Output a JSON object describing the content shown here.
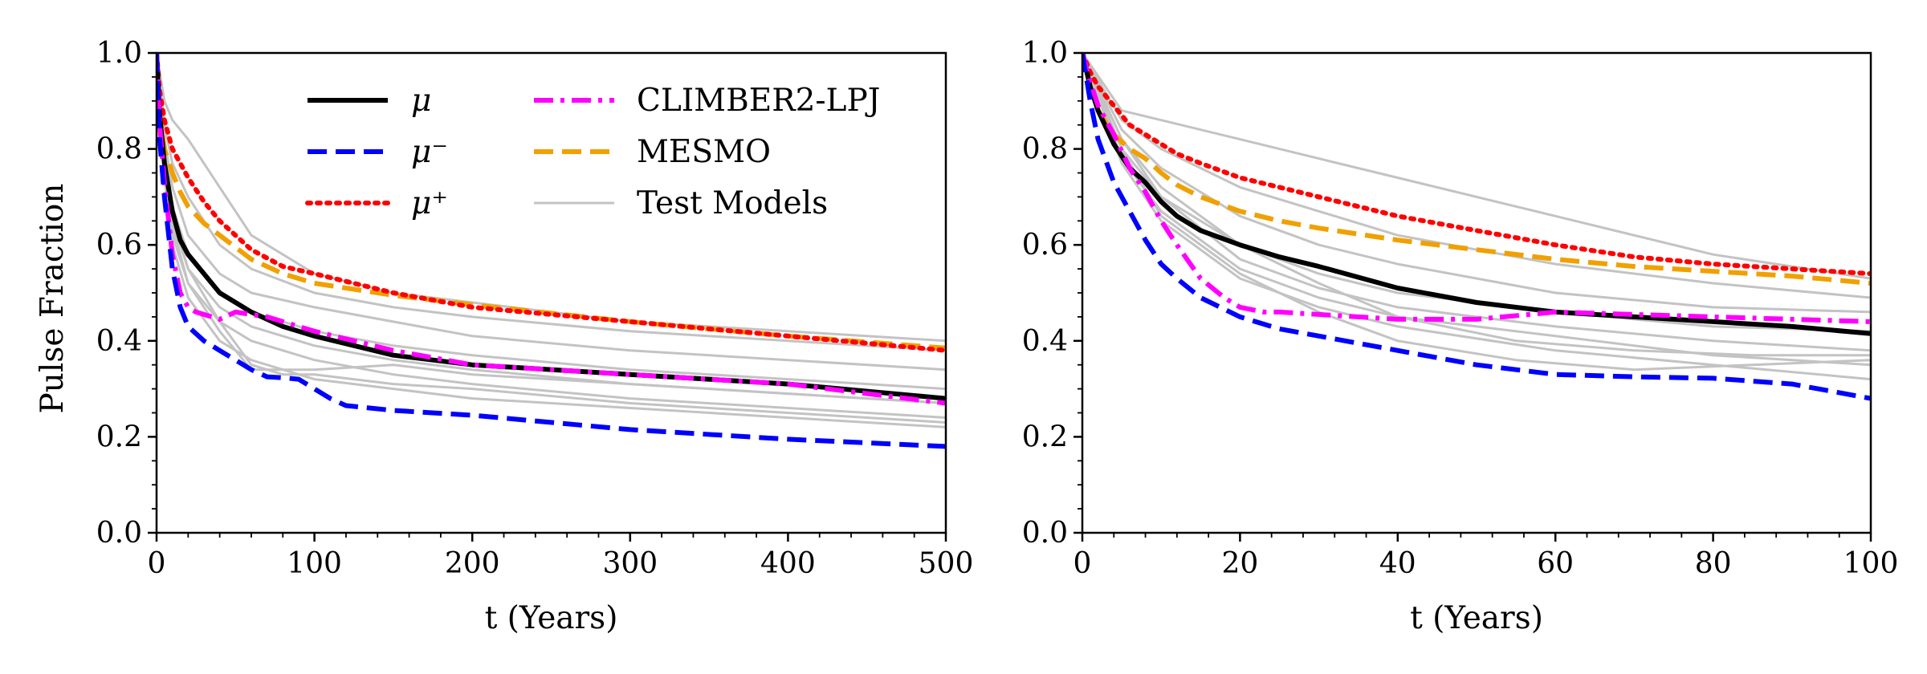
{
  "figure": {
    "ylabel": "Pulse Fraction",
    "legend": {
      "placement": "upper-center",
      "entries": [
        {
          "key": "mu",
          "label": "μ"
        },
        {
          "key": "mu_minus",
          "label": "μ⁻"
        },
        {
          "key": "mu_plus",
          "label": "μ⁺"
        },
        {
          "key": "climber",
          "label": "CLIMBER2-LPJ"
        },
        {
          "key": "mesmo",
          "label": "MESMO"
        },
        {
          "key": "test",
          "label": "Test Models"
        }
      ]
    }
  },
  "series_styles": {
    "mu": {
      "color": "#000000",
      "dash": "",
      "width": 6
    },
    "mu_minus": {
      "color": "#0000ff",
      "dash": "24 11",
      "width": 6
    },
    "mu_plus": {
      "color": "#ff0000",
      "dash": "4 8",
      "width": 6
    },
    "climber": {
      "color": "#ff00ff",
      "dash": "24 9 5 9",
      "width": 6
    },
    "mesmo": {
      "color": "#f0a000",
      "dash": "24 11",
      "width": 6
    },
    "test": {
      "color": "#c3c3c3",
      "dash": "",
      "width": 3
    }
  },
  "chart_data": [
    {
      "type": "line",
      "xlabel": "t (Years)",
      "ylabel": "Pulse Fraction",
      "xlim": [
        0,
        500
      ],
      "ylim": [
        0,
        1
      ],
      "xticks": [
        0,
        100,
        200,
        300,
        400,
        500
      ],
      "yticks": [
        0.0,
        0.2,
        0.4,
        0.6,
        0.8,
        1.0
      ],
      "xtick_labels": [
        "0",
        "100",
        "200",
        "300",
        "400",
        "500"
      ],
      "ytick_labels": [
        "0.0",
        "0.2",
        "0.4",
        "0.6",
        "0.8",
        "1.0"
      ],
      "grid": false,
      "series": [
        {
          "key": "mu",
          "name": "μ",
          "x": [
            0,
            2,
            5,
            10,
            15,
            20,
            30,
            40,
            60,
            80,
            100,
            150,
            200,
            300,
            400,
            500
          ],
          "y": [
            1.0,
            0.87,
            0.77,
            0.67,
            0.61,
            0.58,
            0.54,
            0.5,
            0.46,
            0.43,
            0.41,
            0.37,
            0.35,
            0.33,
            0.31,
            0.28
          ]
        },
        {
          "key": "mu_minus",
          "name": "μ⁻",
          "x": [
            0,
            2,
            5,
            10,
            15,
            20,
            30,
            40,
            50,
            60,
            70,
            80,
            90,
            100,
            110,
            120,
            150,
            200,
            300,
            400,
            500
          ],
          "y": [
            1.0,
            0.82,
            0.7,
            0.55,
            0.47,
            0.43,
            0.4,
            0.38,
            0.36,
            0.34,
            0.325,
            0.323,
            0.32,
            0.3,
            0.28,
            0.265,
            0.255,
            0.245,
            0.215,
            0.195,
            0.18
          ]
        },
        {
          "key": "mu_plus",
          "name": "μ⁺",
          "x": [
            0,
            2,
            5,
            10,
            15,
            20,
            30,
            40,
            60,
            80,
            100,
            150,
            200,
            300,
            400,
            500
          ],
          "y": [
            1.0,
            0.92,
            0.86,
            0.8,
            0.77,
            0.74,
            0.69,
            0.65,
            0.59,
            0.555,
            0.54,
            0.5,
            0.47,
            0.44,
            0.41,
            0.38
          ]
        },
        {
          "key": "climber",
          "name": "CLIMBER2-LPJ",
          "x": [
            0,
            2,
            5,
            10,
            15,
            20,
            25,
            30,
            40,
            50,
            60,
            70,
            80,
            100,
            150,
            200,
            300,
            400,
            500
          ],
          "y": [
            1.0,
            0.85,
            0.73,
            0.58,
            0.5,
            0.47,
            0.46,
            0.455,
            0.445,
            0.46,
            0.455,
            0.45,
            0.44,
            0.42,
            0.38,
            0.35,
            0.33,
            0.31,
            0.27
          ]
        },
        {
          "key": "mesmo",
          "name": "MESMO",
          "x": [
            0,
            2,
            5,
            10,
            15,
            20,
            30,
            40,
            60,
            80,
            100,
            150,
            200,
            300,
            400,
            500
          ],
          "y": [
            1.0,
            0.88,
            0.8,
            0.75,
            0.71,
            0.68,
            0.645,
            0.62,
            0.57,
            0.54,
            0.52,
            0.495,
            0.475,
            0.44,
            0.41,
            0.385
          ]
        },
        {
          "key": "test",
          "name": "Test Models",
          "x": [
            0,
            5,
            10,
            20,
            40,
            60,
            100,
            150,
            200,
            300,
            400,
            500
          ],
          "y": [
            1.0,
            0.9,
            0.86,
            0.82,
            0.72,
            0.62,
            0.54,
            0.5,
            0.48,
            0.44,
            0.42,
            0.4
          ]
        },
        {
          "key": "test",
          "name": "Test Models",
          "x": [
            0,
            5,
            10,
            20,
            40,
            60,
            100,
            150,
            200,
            300,
            400,
            500
          ],
          "y": [
            1.0,
            0.85,
            0.77,
            0.7,
            0.6,
            0.55,
            0.5,
            0.47,
            0.45,
            0.42,
            0.4,
            0.38
          ]
        },
        {
          "key": "test",
          "name": "Test Models",
          "x": [
            0,
            5,
            10,
            20,
            40,
            60,
            100,
            150,
            200,
            300,
            400,
            500
          ],
          "y": [
            1.0,
            0.82,
            0.72,
            0.62,
            0.54,
            0.5,
            0.47,
            0.44,
            0.41,
            0.38,
            0.36,
            0.34
          ]
        },
        {
          "key": "test",
          "name": "Test Models",
          "x": [
            0,
            5,
            10,
            20,
            40,
            60,
            100,
            150,
            200,
            300,
            400,
            500
          ],
          "y": [
            1.0,
            0.8,
            0.68,
            0.58,
            0.5,
            0.46,
            0.42,
            0.39,
            0.37,
            0.34,
            0.32,
            0.3
          ]
        },
        {
          "key": "test",
          "name": "Test Models",
          "x": [
            0,
            5,
            10,
            20,
            40,
            60,
            100,
            150,
            200,
            300,
            400,
            500
          ],
          "y": [
            1.0,
            0.78,
            0.65,
            0.55,
            0.47,
            0.43,
            0.39,
            0.36,
            0.34,
            0.31,
            0.29,
            0.27
          ]
        },
        {
          "key": "test",
          "name": "Test Models",
          "x": [
            0,
            5,
            10,
            20,
            40,
            60,
            100,
            150,
            200,
            300,
            400,
            500
          ],
          "y": [
            1.0,
            0.76,
            0.62,
            0.52,
            0.44,
            0.4,
            0.36,
            0.33,
            0.31,
            0.28,
            0.26,
            0.24
          ]
        },
        {
          "key": "test",
          "name": "Test Models",
          "x": [
            0,
            5,
            10,
            20,
            40,
            60,
            100,
            150,
            200,
            300,
            400,
            500
          ],
          "y": [
            1.0,
            0.74,
            0.6,
            0.49,
            0.4,
            0.36,
            0.32,
            0.3,
            0.28,
            0.26,
            0.24,
            0.22
          ]
        },
        {
          "key": "test",
          "name": "Test Models",
          "x": [
            0,
            5,
            10,
            20,
            40,
            60,
            80,
            100,
            150,
            200,
            300,
            400,
            500
          ],
          "y": [
            1.0,
            0.8,
            0.66,
            0.55,
            0.44,
            0.35,
            0.33,
            0.33,
            0.31,
            0.3,
            0.27,
            0.25,
            0.23
          ]
        },
        {
          "key": "test",
          "name": "Test Models",
          "x": [
            0,
            5,
            10,
            20,
            40,
            60,
            80,
            100,
            150,
            200,
            300,
            400,
            500
          ],
          "y": [
            1.0,
            0.78,
            0.64,
            0.52,
            0.42,
            0.34,
            0.34,
            0.34,
            0.35,
            0.33,
            0.31,
            0.29,
            0.27
          ]
        }
      ]
    },
    {
      "type": "line",
      "xlabel": "t (Years)",
      "ylabel": "",
      "xlim": [
        0,
        100
      ],
      "ylim": [
        0,
        1
      ],
      "xticks": [
        0,
        20,
        40,
        60,
        80,
        100
      ],
      "yticks": [
        0.0,
        0.2,
        0.4,
        0.6,
        0.8,
        1.0
      ],
      "xtick_labels": [
        "0",
        "20",
        "40",
        "60",
        "80",
        "100"
      ],
      "ytick_labels": [
        "0.0",
        "0.2",
        "0.4",
        "0.6",
        "0.8",
        "1.0"
      ],
      "grid": false,
      "series": [
        {
          "key": "mu",
          "name": "μ",
          "x": [
            0,
            1,
            2,
            4,
            6,
            8,
            10,
            12,
            15,
            20,
            25,
            30,
            40,
            50,
            60,
            70,
            80,
            90,
            100
          ],
          "y": [
            1.0,
            0.93,
            0.88,
            0.81,
            0.76,
            0.73,
            0.69,
            0.66,
            0.63,
            0.6,
            0.575,
            0.555,
            0.51,
            0.48,
            0.46,
            0.45,
            0.44,
            0.43,
            0.415
          ]
        },
        {
          "key": "mu_minus",
          "name": "μ⁻",
          "x": [
            0,
            1,
            2,
            4,
            6,
            8,
            10,
            12,
            15,
            20,
            25,
            30,
            40,
            50,
            60,
            70,
            80,
            90,
            100
          ],
          "y": [
            1.0,
            0.9,
            0.82,
            0.73,
            0.67,
            0.61,
            0.56,
            0.53,
            0.49,
            0.45,
            0.425,
            0.41,
            0.38,
            0.35,
            0.33,
            0.325,
            0.322,
            0.31,
            0.28
          ]
        },
        {
          "key": "mu_plus",
          "name": "μ⁺",
          "x": [
            0,
            1,
            2,
            4,
            6,
            8,
            10,
            12,
            15,
            20,
            25,
            30,
            40,
            50,
            60,
            70,
            80,
            90,
            100
          ],
          "y": [
            1.0,
            0.96,
            0.93,
            0.89,
            0.85,
            0.83,
            0.81,
            0.79,
            0.77,
            0.74,
            0.72,
            0.7,
            0.66,
            0.63,
            0.6,
            0.575,
            0.56,
            0.55,
            0.54
          ]
        },
        {
          "key": "climber",
          "name": "CLIMBER2-LPJ",
          "x": [
            0,
            1,
            2,
            4,
            6,
            8,
            10,
            12,
            15,
            18,
            20,
            23,
            25,
            30,
            40,
            50,
            60,
            70,
            80,
            90,
            100
          ],
          "y": [
            1.0,
            0.94,
            0.89,
            0.83,
            0.76,
            0.71,
            0.65,
            0.6,
            0.53,
            0.49,
            0.47,
            0.46,
            0.46,
            0.455,
            0.445,
            0.445,
            0.46,
            0.455,
            0.45,
            0.445,
            0.44
          ]
        },
        {
          "key": "mesmo",
          "name": "MESMO",
          "x": [
            0,
            1,
            2,
            4,
            6,
            8,
            10,
            12,
            15,
            20,
            25,
            30,
            40,
            50,
            60,
            70,
            80,
            90,
            100
          ],
          "y": [
            1.0,
            0.93,
            0.88,
            0.83,
            0.8,
            0.78,
            0.75,
            0.725,
            0.7,
            0.67,
            0.65,
            0.635,
            0.61,
            0.59,
            0.57,
            0.555,
            0.545,
            0.535,
            0.52
          ]
        },
        {
          "key": "test",
          "name": "Test Models",
          "x": [
            0,
            5,
            10,
            20,
            30,
            40,
            60,
            80,
            100
          ],
          "y": [
            1.0,
            0.88,
            0.86,
            0.82,
            0.78,
            0.74,
            0.66,
            0.58,
            0.53
          ]
        },
        {
          "key": "test",
          "name": "Test Models",
          "x": [
            0,
            5,
            10,
            20,
            30,
            40,
            60,
            80,
            100
          ],
          "y": [
            1.0,
            0.86,
            0.8,
            0.72,
            0.67,
            0.62,
            0.56,
            0.52,
            0.49
          ]
        },
        {
          "key": "test",
          "name": "Test Models",
          "x": [
            0,
            5,
            10,
            20,
            30,
            40,
            60,
            80,
            100
          ],
          "y": [
            1.0,
            0.84,
            0.76,
            0.66,
            0.6,
            0.56,
            0.5,
            0.47,
            0.46
          ]
        },
        {
          "key": "test",
          "name": "Test Models",
          "x": [
            0,
            5,
            10,
            20,
            30,
            40,
            60,
            80,
            100
          ],
          "y": [
            1.0,
            0.82,
            0.72,
            0.6,
            0.54,
            0.5,
            0.46,
            0.43,
            0.42
          ]
        },
        {
          "key": "test",
          "name": "Test Models",
          "x": [
            0,
            5,
            10,
            20,
            30,
            40,
            60,
            80,
            100
          ],
          "y": [
            1.0,
            0.8,
            0.7,
            0.57,
            0.51,
            0.47,
            0.43,
            0.4,
            0.38
          ]
        },
        {
          "key": "test",
          "name": "Test Models",
          "x": [
            0,
            5,
            10,
            20,
            30,
            40,
            60,
            80,
            100
          ],
          "y": [
            1.0,
            0.78,
            0.67,
            0.55,
            0.49,
            0.45,
            0.41,
            0.37,
            0.35
          ]
        },
        {
          "key": "test",
          "name": "Test Models",
          "x": [
            0,
            5,
            10,
            20,
            30,
            40,
            60,
            80,
            100
          ],
          "y": [
            1.0,
            0.77,
            0.65,
            0.53,
            0.47,
            0.43,
            0.38,
            0.35,
            0.32
          ]
        },
        {
          "key": "test",
          "name": "Test Models",
          "x": [
            0,
            5,
            10,
            20,
            30,
            40,
            55,
            70,
            85,
            100
          ],
          "y": [
            1.0,
            0.8,
            0.66,
            0.54,
            0.46,
            0.4,
            0.36,
            0.34,
            0.35,
            0.36
          ]
        },
        {
          "key": "test",
          "name": "Test Models",
          "x": [
            0,
            5,
            10,
            20,
            30,
            40,
            55,
            70,
            85,
            100
          ],
          "y": [
            1.0,
            0.82,
            0.7,
            0.6,
            0.52,
            0.45,
            0.4,
            0.38,
            0.37,
            0.37
          ]
        }
      ]
    }
  ]
}
